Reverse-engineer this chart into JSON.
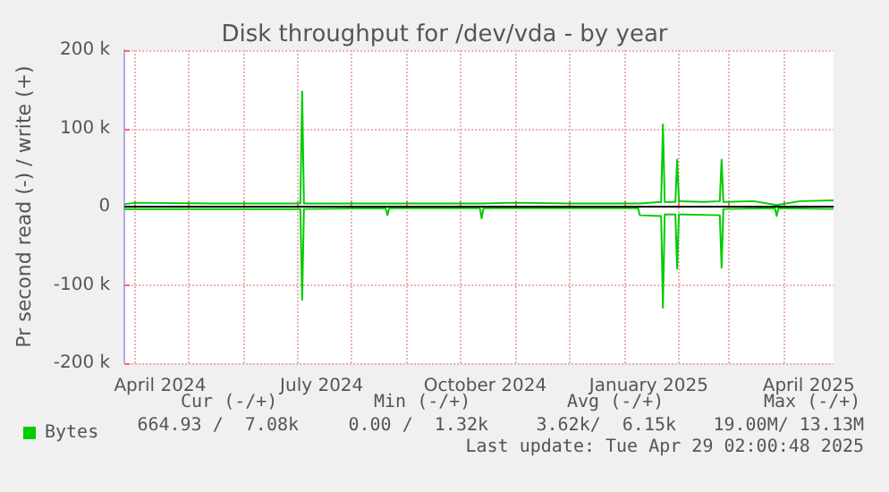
{
  "chart_data": {
    "type": "line",
    "title": "Disk throughput for /dev/vda - by year",
    "ylabel": "Pr second read (-) / write (+)",
    "xlim": [
      "2024-03-26",
      "2025-04-29"
    ],
    "xticks": [
      {
        "value": "2024-04-01",
        "label": null
      },
      {
        "value": "2024-04-15",
        "label": "April 2024"
      },
      {
        "value": "2024-05-01",
        "label": null
      },
      {
        "value": "2024-06-01",
        "label": null
      },
      {
        "value": "2024-07-01",
        "label": null
      },
      {
        "value": "2024-07-15",
        "label": "July 2024"
      },
      {
        "value": "2024-08-01",
        "label": null
      },
      {
        "value": "2024-09-01",
        "label": null
      },
      {
        "value": "2024-10-01",
        "label": null
      },
      {
        "value": "2024-10-15",
        "label": "October 2024"
      },
      {
        "value": "2024-11-01",
        "label": null
      },
      {
        "value": "2024-12-01",
        "label": null
      },
      {
        "value": "2025-01-01",
        "label": null
      },
      {
        "value": "2025-01-15",
        "label": "January 2025"
      },
      {
        "value": "2025-02-01",
        "label": null
      },
      {
        "value": "2025-03-01",
        "label": null
      },
      {
        "value": "2025-04-01",
        "label": null
      },
      {
        "value": "2025-04-15",
        "label": "April 2025"
      }
    ],
    "ylim": [
      -200000,
      200000
    ],
    "yticks": [
      {
        "value": -200000,
        "label": "-200 k"
      },
      {
        "value": -100000,
        "label": "-100 k"
      },
      {
        "value": 0,
        "label": "0"
      },
      {
        "value": 100000,
        "label": "100 k"
      },
      {
        "value": 200000,
        "label": "200 k"
      }
    ],
    "grid": true,
    "legend": "bottom left",
    "marker": "none",
    "line_style": "solid",
    "ref_lines": [
      {
        "axis": "y",
        "value": 0,
        "label": null,
        "color": "#000000"
      }
    ],
    "series": [
      {
        "name": "Bytes",
        "color": "#00cc00",
        "x": [
          "2024-03-26",
          "2024-04-01",
          "2024-05-15",
          "2024-07-03",
          "2024-07-04",
          "2024-07-05",
          "2024-09-01",
          "2024-10-13",
          "2024-11-01",
          "2024-12-01",
          "2025-01-10",
          "2025-01-22",
          "2025-01-23",
          "2025-01-24",
          "2025-01-30",
          "2025-01-31",
          "2025-02-01",
          "2025-02-15",
          "2025-02-24",
          "2025-02-25",
          "2025-02-26",
          "2025-03-15",
          "2025-03-28",
          "2025-04-10",
          "2025-04-29"
        ],
        "values": [
          3000,
          5000,
          4000,
          4000,
          147000,
          4000,
          4000,
          4000,
          5000,
          4000,
          4000,
          6000,
          105000,
          6000,
          6000,
          60000,
          7000,
          6000,
          7000,
          60000,
          6000,
          7000,
          2000,
          7000,
          8000
        ]
      },
      {
        "color": "#00cc00",
        "x": [
          "2024-03-26",
          "2024-05-01",
          "2024-07-03",
          "2024-07-04",
          "2024-07-05",
          "2024-08-20",
          "2024-08-21",
          "2024-08-22",
          "2024-10-12",
          "2024-10-13",
          "2024-10-14",
          "2024-12-01",
          "2025-01-09",
          "2025-01-10",
          "2025-01-22",
          "2025-01-23",
          "2025-01-24",
          "2025-01-30",
          "2025-01-31",
          "2025-02-01",
          "2025-02-24",
          "2025-02-25",
          "2025-02-26",
          "2025-03-27",
          "2025-03-28",
          "2025-03-29",
          "2025-04-29"
        ],
        "values": [
          -3000,
          -3000,
          -3000,
          -119000,
          -3000,
          -2000,
          -11000,
          -2000,
          -2000,
          -15000,
          -2000,
          -2000,
          -2000,
          -11000,
          -12000,
          -129000,
          -10000,
          -10000,
          -79000,
          -10000,
          -11000,
          -78000,
          -3000,
          -2000,
          -12000,
          -2000,
          -3000
        ]
      }
    ],
    "annotations": [
      "Cur (-/+)",
      "Min (-/+)",
      "Avg (-/+)",
      "Max (-/+)",
      "664.93 /  7.08k",
      "0.00 /  1.32k",
      "3.62k/  6.15k",
      "19.00M/ 13.13M",
      "Last update: Tue Apr 29 02:00:48 2025"
    ]
  }
}
